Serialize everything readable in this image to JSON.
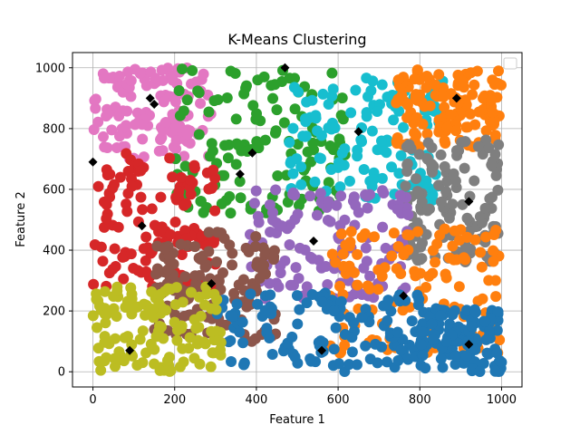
{
  "chart_data": {
    "type": "scatter",
    "title": "K-Means Clustering",
    "xlabel": "Feature 1",
    "ylabel": "Feature 2",
    "xlim": [
      -50,
      1050
    ],
    "ylim": [
      -50,
      1050
    ],
    "xticks": [
      0,
      200,
      400,
      600,
      800,
      1000
    ],
    "yticks": [
      0,
      200,
      400,
      600,
      800,
      1000
    ],
    "grid": true,
    "legend": "top-right (empty)",
    "point_count_per_cluster": 130,
    "clusters": [
      {
        "color": "#e377c2",
        "centroid": [
          150,
          880
        ],
        "x_range": [
          0,
          290
        ],
        "y_range": [
          700,
          1000
        ]
      },
      {
        "color": "#2ca02c",
        "centroid": [
          390,
          720
        ],
        "x_range": [
          200,
          620
        ],
        "y_range": [
          520,
          1000
        ]
      },
      {
        "color": "#17becf",
        "centroid": [
          650,
          790
        ],
        "x_range": [
          480,
          860
        ],
        "y_range": [
          560,
          970
        ]
      },
      {
        "color": "#ff7f0e",
        "centroid": [
          890,
          900
        ],
        "x_range": [
          740,
          1000
        ],
        "y_range": [
          740,
          1000
        ]
      },
      {
        "color": "#7f7f7f",
        "centroid": [
          920,
          560
        ],
        "x_range": [
          760,
          1000
        ],
        "y_range": [
          360,
          770
        ]
      },
      {
        "color": "#d62728",
        "centroid": [
          120,
          480
        ],
        "x_range": [
          0,
          300
        ],
        "y_range": [
          280,
          720
        ]
      },
      {
        "color": "#9467bd",
        "centroid": [
          540,
          430
        ],
        "x_range": [
          380,
          780
        ],
        "y_range": [
          240,
          600
        ]
      },
      {
        "color": "#8c564b",
        "centroid": [
          290,
          290
        ],
        "x_range": [
          150,
          450
        ],
        "y_range": [
          90,
          460
        ]
      },
      {
        "color": "#ff7f0e",
        "centroid": [
          760,
          250
        ],
        "x_range": [
          580,
          1000
        ],
        "y_range": [
          60,
          470
        ]
      },
      {
        "color": "#1f77b4",
        "centroid": [
          560,
          70
        ],
        "x_range": [
          300,
          820
        ],
        "y_range": [
          0,
          260
        ]
      },
      {
        "color": "#1f77b4",
        "centroid": [
          920,
          90
        ],
        "x_range": [
          800,
          1000
        ],
        "y_range": [
          0,
          210
        ]
      },
      {
        "color": "#bcbd22",
        "centroid": [
          90,
          70
        ],
        "x_range": [
          0,
          320
        ],
        "y_range": [
          0,
          280
        ]
      }
    ],
    "centroids": [
      [
        150,
        880
      ],
      [
        390,
        720
      ],
      [
        650,
        790
      ],
      [
        890,
        900
      ],
      [
        920,
        560
      ],
      [
        120,
        480
      ],
      [
        540,
        430
      ],
      [
        290,
        290
      ],
      [
        760,
        250
      ],
      [
        560,
        70
      ],
      [
        920,
        90
      ],
      [
        90,
        70
      ],
      [
        470,
        1000
      ],
      [
        0,
        690
      ],
      [
        140,
        900
      ],
      [
        360,
        650
      ]
    ]
  }
}
